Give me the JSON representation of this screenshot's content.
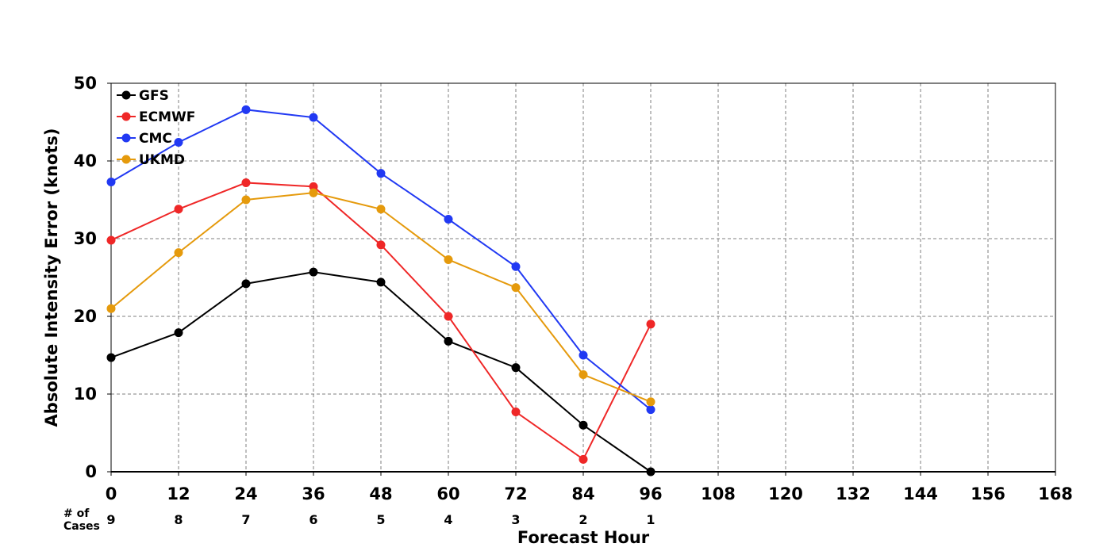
{
  "chart_data": {
    "type": "line",
    "xlabel": "Forecast Hour",
    "ylabel": "Absolute Intensity Error (knots)",
    "xlim": [
      0,
      168
    ],
    "ylim": [
      0,
      50
    ],
    "xticks": [
      0,
      12,
      24,
      36,
      48,
      60,
      72,
      84,
      96,
      108,
      120,
      132,
      144,
      156,
      168
    ],
    "yticks": [
      0,
      10,
      20,
      30,
      40,
      50
    ],
    "grid": true,
    "legend_position": "top-left",
    "cases_label": "# of\nCases",
    "cases": [
      {
        "x": 0,
        "n": "9"
      },
      {
        "x": 12,
        "n": "8"
      },
      {
        "x": 24,
        "n": "7"
      },
      {
        "x": 36,
        "n": "6"
      },
      {
        "x": 48,
        "n": "5"
      },
      {
        "x": 60,
        "n": "4"
      },
      {
        "x": 72,
        "n": "3"
      },
      {
        "x": 84,
        "n": "2"
      },
      {
        "x": 96,
        "n": "1"
      }
    ],
    "series": [
      {
        "name": "GFS",
        "color": "#000000",
        "x": [
          0,
          12,
          24,
          36,
          48,
          60,
          72,
          84,
          96
        ],
        "values": [
          14.7,
          17.9,
          24.2,
          25.7,
          24.4,
          16.8,
          13.4,
          6.0,
          0.0
        ]
      },
      {
        "name": "ECMWF",
        "color": "#ef2727",
        "x": [
          0,
          12,
          24,
          36,
          48,
          60,
          72,
          84,
          96
        ],
        "values": [
          29.8,
          33.8,
          37.2,
          36.7,
          29.2,
          20.0,
          7.7,
          1.6,
          19.0
        ]
      },
      {
        "name": "CMC",
        "color": "#2139f3",
        "x": [
          0,
          12,
          24,
          36,
          48,
          60,
          72,
          84,
          96
        ],
        "values": [
          37.3,
          42.4,
          46.6,
          45.6,
          38.4,
          32.5,
          26.4,
          15.0,
          8.0
        ]
      },
      {
        "name": "UKMD",
        "color": "#e59a0c",
        "x": [
          0,
          12,
          24,
          36,
          48,
          60,
          72,
          84,
          96
        ],
        "values": [
          21.0,
          28.2,
          35.0,
          35.9,
          33.8,
          27.3,
          23.7,
          12.5,
          9.0
        ]
      }
    ]
  }
}
